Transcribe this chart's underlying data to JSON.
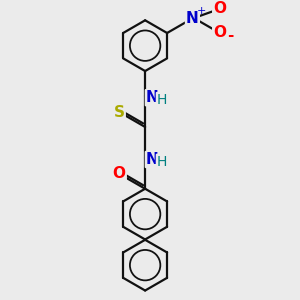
{
  "background_color": "#ebebeb",
  "atom_colors": {
    "C": "#000000",
    "N": "#0000cc",
    "O": "#ff0000",
    "S": "#aaaa00",
    "H": "#008080"
  },
  "bond_color": "#111111",
  "bond_lw": 1.6,
  "figsize": [
    3.0,
    3.0
  ],
  "dpi": 100
}
